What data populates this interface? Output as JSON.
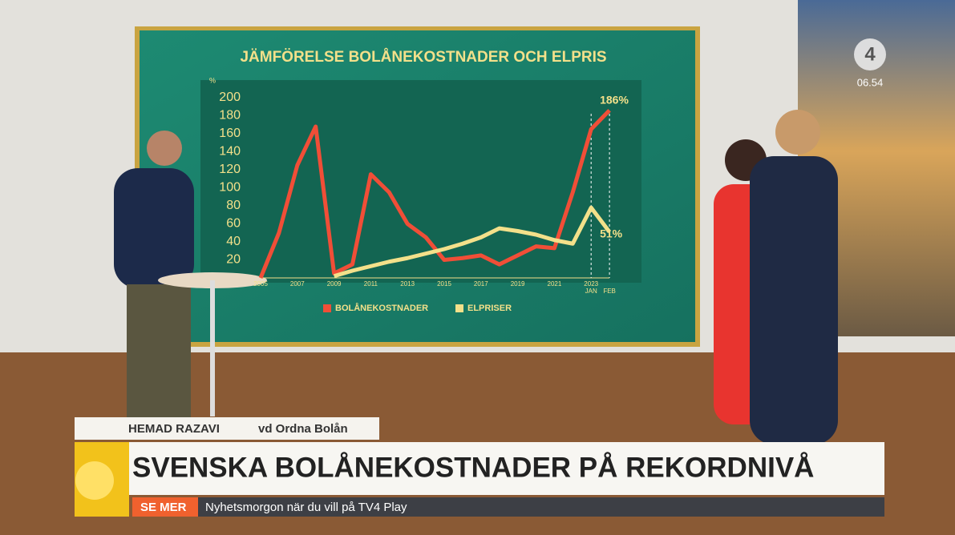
{
  "chart_data": {
    "type": "line",
    "title": "JÄMFÖRELSE BOLÅNEKOSTNADER OCH ELPRIS",
    "y_label": "%",
    "categories": [
      "2005",
      null,
      "2007",
      null,
      "2009",
      null,
      "2011",
      null,
      "2013",
      null,
      "2015",
      null,
      "2017",
      null,
      "2019",
      null,
      "2021",
      null,
      "2023",
      null
    ],
    "category_sublabels": [
      null,
      null,
      null,
      null,
      null,
      null,
      null,
      null,
      null,
      null,
      null,
      null,
      null,
      null,
      null,
      null,
      null,
      null,
      "JAN",
      "FEB"
    ],
    "series": [
      {
        "name": "BOLÅNEKOSTNADER",
        "color": "#f04e37",
        "values": [
          0,
          50,
          125,
          168,
          5,
          15,
          115,
          95,
          60,
          45,
          20,
          22,
          25,
          15,
          25,
          35,
          33,
          95,
          165,
          186
        ],
        "value_labels": [
          null,
          null,
          null,
          null,
          null,
          null,
          null,
          null,
          null,
          null,
          null,
          null,
          null,
          null,
          null,
          null,
          null,
          null,
          null,
          "186%"
        ]
      },
      {
        "name": "ELPRISER",
        "color": "#f3e08a",
        "values": [
          null,
          null,
          null,
          null,
          2,
          8,
          13,
          18,
          22,
          27,
          32,
          38,
          45,
          55,
          52,
          48,
          42,
          38,
          78,
          51
        ],
        "value_labels": [
          null,
          null,
          null,
          null,
          null,
          null,
          null,
          null,
          null,
          null,
          null,
          null,
          null,
          null,
          null,
          null,
          null,
          null,
          null,
          "51%"
        ]
      }
    ],
    "ylim": [
      0,
      200
    ],
    "yticks": [
      20,
      40,
      60,
      80,
      100,
      120,
      140,
      160,
      180,
      200
    ],
    "legend": "bottom"
  },
  "overlay": {
    "channel_logo": "4",
    "clock": "06.54",
    "speaker_name": "HEMAD RAZAVI",
    "speaker_role": "vd Ordna Bolån",
    "headline": "SVENSKA BOLÅNEKOSTNADER PÅ REKORDNIVÅ",
    "ticker_label": "SE MER",
    "ticker_text": "Nyhetsmorgon när du vill på TV4 Play"
  }
}
